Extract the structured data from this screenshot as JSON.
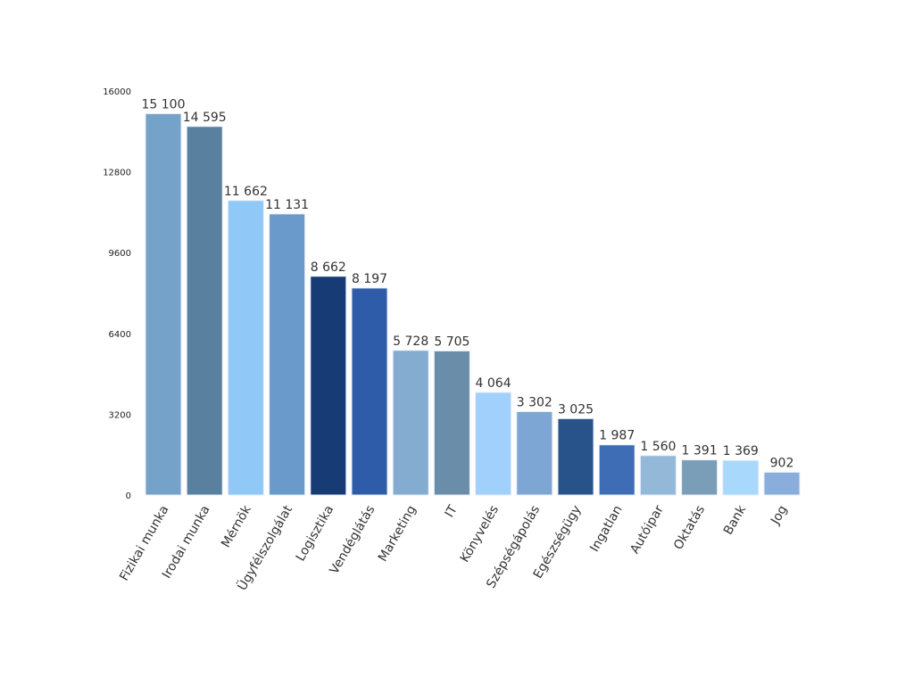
{
  "chart_data": {
    "type": "bar",
    "title": "",
    "xlabel": "",
    "ylabel": "",
    "ylim": [
      0,
      16000
    ],
    "yticks": [
      0,
      3200,
      6400,
      9600,
      12800,
      16000
    ],
    "grid": false,
    "legend": "none",
    "categories": [
      "Fizikai munka",
      "Irodai munka",
      "Mérnök",
      "Ügyfélszolgálat",
      "Logisztika",
      "Vendéglátás",
      "Marketing",
      "IT",
      "Könyvelés",
      "Szépségápolás",
      "Egészségügy",
      "Ingatlan",
      "Autóipar",
      "Oktatás",
      "Bank",
      "Jog"
    ],
    "values": [
      15100,
      14595,
      11662,
      11131,
      8662,
      8197,
      5728,
      5705,
      4064,
      3302,
      3025,
      1987,
      1560,
      1391,
      1369,
      902
    ],
    "data_labels": [
      "15 100",
      "14 595",
      "11 662",
      "11 131",
      "8 662",
      "8 197",
      "5 728",
      "5 705",
      "4 064",
      "3 302",
      "3 025",
      "1 987",
      "1 560",
      "1 391",
      "1 369",
      "902"
    ],
    "colors": [
      "#74a2c9",
      "#5a80a0",
      "#90c8f8",
      "#6a9acc",
      "#173c75",
      "#2f5ca8",
      "#84acd0",
      "#6a8ea9",
      "#a0d0fb",
      "#7ea6d4",
      "#28528a",
      "#3f6db5",
      "#93b8d8",
      "#7a9eb8",
      "#a8d8fb",
      "#8aaedc"
    ]
  }
}
